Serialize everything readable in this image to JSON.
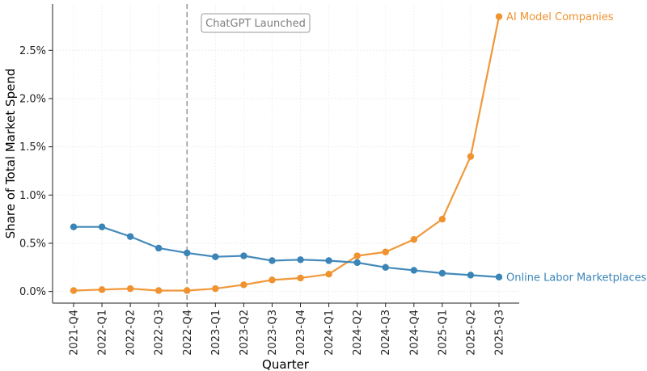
{
  "chart_data": {
    "type": "line",
    "title": "",
    "xlabel": "Quarter",
    "ylabel": "Share of Total Market Spend",
    "categories": [
      "2021-Q4",
      "2022-Q1",
      "2022-Q2",
      "2022-Q3",
      "2022-Q4",
      "2023-Q1",
      "2023-Q2",
      "2023-Q3",
      "2023-Q4",
      "2024-Q1",
      "2024-Q2",
      "2024-Q3",
      "2024-Q4",
      "2025-Q1",
      "2025-Q2",
      "2025-Q3"
    ],
    "ylim": [
      -0.12,
      2.98
    ],
    "yticks": [
      0.0,
      0.5,
      1.0,
      1.5,
      2.0,
      2.5
    ],
    "ytick_labels": [
      "0.0%",
      "0.5%",
      "1.0%",
      "1.5%",
      "2.0%",
      "2.5%"
    ],
    "grid": true,
    "series": [
      {
        "name": "AI Model Companies",
        "color": "#f0922f",
        "values": [
          0.01,
          0.02,
          0.03,
          0.01,
          0.01,
          0.03,
          0.07,
          0.12,
          0.14,
          0.18,
          0.37,
          0.41,
          0.54,
          0.75,
          1.4,
          2.85
        ]
      },
      {
        "name": "Online Labor Marketplaces",
        "color": "#3a84b7",
        "values": [
          0.67,
          0.67,
          0.57,
          0.45,
          0.4,
          0.36,
          0.37,
          0.32,
          0.33,
          0.32,
          0.3,
          0.25,
          0.22,
          0.19,
          0.17,
          0.15
        ]
      }
    ],
    "annotation": {
      "text": "ChatGPT Launched",
      "at_category": "2022-Q4"
    }
  }
}
